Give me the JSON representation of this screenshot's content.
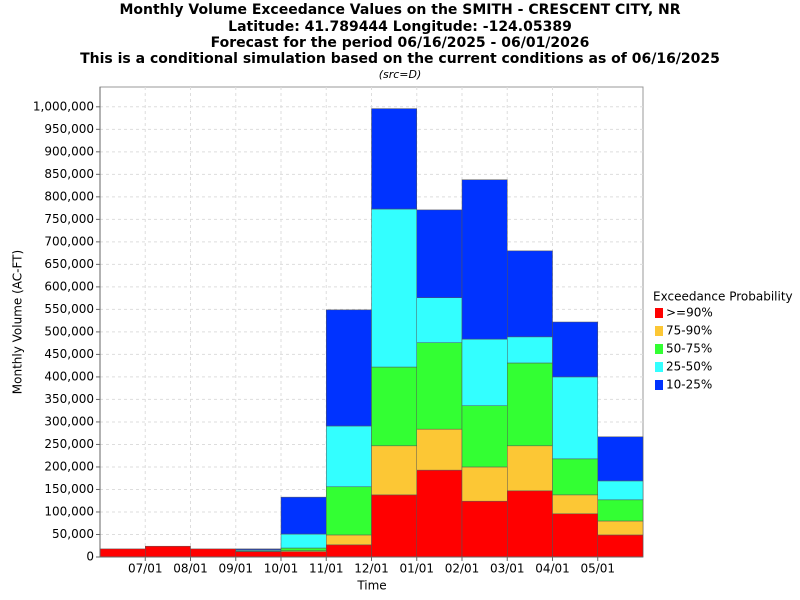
{
  "chart_data": {
    "type": "stacked_bar",
    "title": [
      "Monthly Volume Exceedance Values on the SMITH - CRESCENT CITY, NR",
      "Latitude: 41.789444 Longitude: -124.05389",
      "Forecast for the period 06/16/2025 - 06/01/2026",
      "This is a conditional simulation based on the current conditions as of 06/16/2025"
    ],
    "subtitle": "(src=D)",
    "x_label": "Time",
    "y_label": "Monthly Volume (AC-FT)",
    "legend_title": "Exceedance Probability",
    "categories": [
      null,
      null,
      null,
      null,
      null,
      null,
      null,
      null,
      null,
      null,
      null,
      null
    ],
    "xtick_labels": [
      "07/01",
      "08/01",
      "09/01",
      "10/01",
      "11/01",
      "12/01",
      "01/01",
      "02/01",
      "03/01",
      "04/01",
      "05/01"
    ],
    "series": [
      {
        "name": ">=90%",
        "color": "#ff0000",
        "values": [
          18000,
          24000,
          18000,
          12000,
          12000,
          27000,
          138000,
          193000,
          124000,
          147000,
          96000,
          49000
        ]
      },
      {
        "name": "75-90%",
        "color": "#fcc735",
        "values": [
          0,
          0,
          0,
          1000,
          2000,
          22000,
          109000,
          91000,
          76000,
          100000,
          42000,
          31000
        ]
      },
      {
        "name": "50-75%",
        "color": "#33ff33",
        "values": [
          0,
          0,
          0,
          1000,
          6000,
          107000,
          175000,
          192000,
          136000,
          184000,
          80000,
          47000
        ]
      },
      {
        "name": "25-50%",
        "color": "#33ffff",
        "values": [
          0,
          0,
          0,
          2000,
          31000,
          135000,
          351000,
          100000,
          148000,
          58000,
          182000,
          42000
        ]
      },
      {
        "name": "10-25%",
        "color": "#0033ff",
        "values": [
          0,
          0,
          0,
          2000,
          82000,
          258000,
          223000,
          195000,
          354000,
          191000,
          122000,
          98000
        ]
      }
    ],
    "ylim": [
      0,
      1044000
    ],
    "yticks": [
      0,
      {
        "value": 50000,
        "label": "50,000"
      },
      {
        "value": 100000,
        "label": "100,000"
      },
      {
        "value": 150000,
        "label": "150,000"
      },
      {
        "value": 200000,
        "label": "200,000"
      },
      {
        "value": 250000,
        "label": "250,000"
      },
      {
        "value": 300000,
        "label": "300,000"
      },
      {
        "value": 350000,
        "label": "350,000"
      },
      {
        "value": 400000,
        "label": "400,000"
      },
      {
        "value": 450000,
        "label": "450,000"
      },
      {
        "value": 500000,
        "label": "500,000"
      },
      {
        "value": 550000,
        "label": "550,000"
      },
      {
        "value": 600000,
        "label": "600,000"
      },
      {
        "value": 650000,
        "label": "650,000"
      },
      {
        "value": 700000,
        "label": "700,000"
      },
      {
        "value": 750000,
        "label": "750,000"
      },
      {
        "value": 800000,
        "label": "800,000"
      },
      {
        "value": 850000,
        "label": "850,000"
      },
      {
        "value": 900000,
        "label": "900,000"
      },
      {
        "value": 950000,
        "label": "950,000"
      },
      {
        "value": 1000000,
        "label": "1,000,000"
      }
    ],
    "grid": true
  }
}
